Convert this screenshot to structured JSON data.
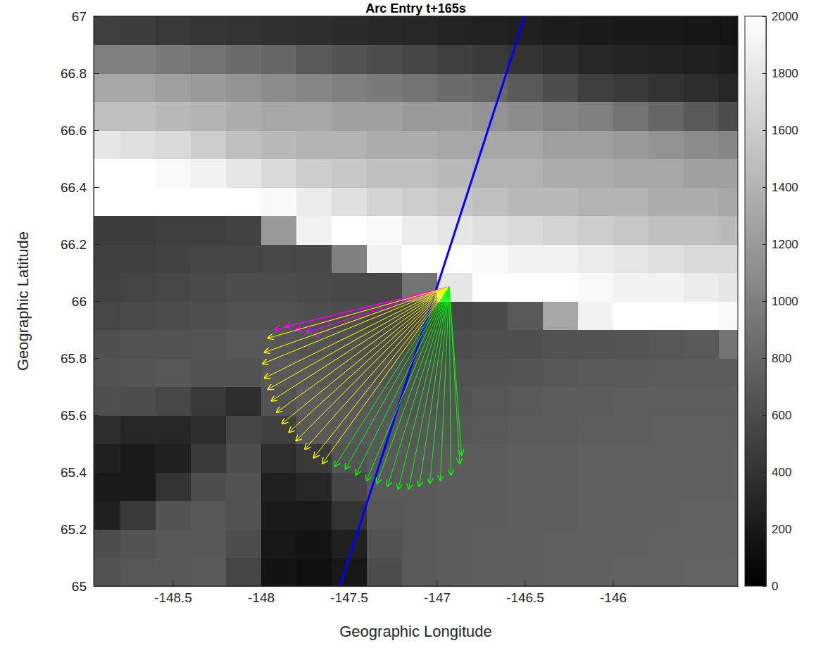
{
  "chart_data": {
    "type": "heatmap",
    "title": "Arc Entry t+165s",
    "x_label": "Geographic Longitude",
    "y_label": "Geographic Latitude",
    "xlim": [
      -148.95,
      -145.29
    ],
    "ylim": [
      65,
      67
    ],
    "xticks": [
      -148.5,
      -148,
      -147.5,
      -147,
      -146.5,
      -146
    ],
    "yticks": [
      65,
      65.2,
      65.4,
      65.6,
      65.8,
      66,
      66.2,
      66.4,
      66.6,
      66.8,
      67
    ],
    "grid": false,
    "heatmap": {
      "x": [
        -148.9,
        -148.7,
        -148.5,
        -148.3,
        -148.1,
        -147.9,
        -147.7,
        -147.5,
        -147.3,
        -147.1,
        -146.9,
        -146.7,
        -146.5,
        -146.3,
        -146.1,
        -145.9,
        -145.7,
        -145.5,
        -145.3
      ],
      "y": [
        65.05,
        65.15,
        65.25,
        65.35,
        65.45,
        65.55,
        65.65,
        65.75,
        65.85,
        65.95,
        66.05,
        66.15,
        66.25,
        66.35,
        66.45,
        66.55,
        66.65,
        66.75,
        66.85,
        66.95
      ],
      "values": [
        [
          650,
          680,
          690,
          700,
          550,
          150,
          120,
          180,
          600,
          700,
          720,
          730,
          740,
          750,
          760,
          770,
          770,
          780,
          780
        ],
        [
          600,
          650,
          680,
          690,
          600,
          180,
          150,
          250,
          650,
          700,
          720,
          730,
          740,
          750,
          760,
          760,
          770,
          770,
          770
        ],
        [
          250,
          450,
          650,
          680,
          650,
          200,
          200,
          400,
          680,
          700,
          720,
          720,
          740,
          740,
          750,
          760,
          760,
          770,
          770
        ],
        [
          200,
          200,
          400,
          600,
          650,
          250,
          300,
          550,
          700,
          700,
          720,
          720,
          740,
          740,
          750,
          750,
          760,
          760,
          760
        ],
        [
          250,
          200,
          250,
          450,
          600,
          350,
          450,
          650,
          700,
          700,
          720,
          720,
          740,
          740,
          750,
          750,
          760,
          760,
          760
        ],
        [
          350,
          300,
          300,
          350,
          550,
          500,
          700,
          700,
          700,
          680,
          680,
          700,
          720,
          720,
          740,
          740,
          750,
          750,
          750
        ],
        [
          620,
          600,
          560,
          450,
          350,
          650,
          720,
          700,
          680,
          660,
          660,
          680,
          700,
          720,
          720,
          730,
          740,
          740,
          740
        ],
        [
          640,
          660,
          680,
          650,
          640,
          700,
          700,
          680,
          660,
          640,
          640,
          650,
          660,
          680,
          700,
          700,
          720,
          720,
          720
        ],
        [
          620,
          640,
          650,
          660,
          680,
          680,
          660,
          640,
          620,
          600,
          600,
          620,
          620,
          640,
          650,
          660,
          680,
          700,
          900
        ],
        [
          560,
          580,
          600,
          620,
          640,
          640,
          620,
          600,
          580,
          560,
          560,
          580,
          700,
          1300,
          1900,
          2000,
          2000,
          2000,
          1950
        ],
        [
          520,
          540,
          560,
          580,
          600,
          600,
          580,
          560,
          560,
          900,
          1800,
          2000,
          2000,
          2000,
          1950,
          1900,
          1900,
          1850,
          1800
        ],
        [
          500,
          500,
          520,
          540,
          550,
          560,
          570,
          1000,
          1900,
          2000,
          2000,
          1950,
          1900,
          1900,
          1850,
          1800,
          1750,
          1700,
          1700
        ],
        [
          480,
          480,
          500,
          500,
          520,
          1200,
          1900,
          2000,
          1950,
          1850,
          1800,
          1750,
          1700,
          1650,
          1600,
          1550,
          1500,
          1500,
          1450
        ],
        [
          2000,
          2000,
          2000,
          2000,
          2000,
          1950,
          1850,
          1750,
          1650,
          1600,
          1550,
          1500,
          1450,
          1450,
          1400,
          1400,
          1350,
          1350,
          1300
        ],
        [
          2000,
          2000,
          1950,
          1900,
          1800,
          1700,
          1600,
          1550,
          1500,
          1500,
          1450,
          1400,
          1400,
          1350,
          1350,
          1300,
          1300,
          1250,
          1250
        ],
        [
          1800,
          1750,
          1700,
          1600,
          1500,
          1450,
          1400,
          1400,
          1350,
          1350,
          1300,
          1300,
          1300,
          1250,
          1250,
          1200,
          1150,
          1100,
          1050
        ],
        [
          1500,
          1500,
          1450,
          1400,
          1350,
          1300,
          1300,
          1250,
          1250,
          1200,
          1200,
          1150,
          1100,
          1050,
          1000,
          900,
          800,
          700,
          600
        ],
        [
          1300,
          1300,
          1250,
          1200,
          1150,
          1100,
          1050,
          1000,
          950,
          900,
          850,
          800,
          700,
          600,
          500,
          450,
          400,
          350,
          300
        ],
        [
          1000,
          1000,
          950,
          900,
          850,
          800,
          700,
          650,
          600,
          550,
          500,
          450,
          400,
          350,
          300,
          280,
          260,
          240,
          220
        ],
        [
          500,
          480,
          450,
          420,
          400,
          380,
          360,
          340,
          320,
          300,
          280,
          260,
          240,
          220,
          200,
          190,
          180,
          170,
          160
        ]
      ],
      "zlim": [
        0,
        2000
      ],
      "zticks": [
        0,
        200,
        400,
        600,
        800,
        1000,
        1200,
        1400,
        1600,
        1800,
        2000
      ]
    },
    "series": [
      {
        "type": "line",
        "color": "#0000ff",
        "x": [
          -147.55,
          -146.5
        ],
        "y": [
          65,
          67
        ]
      },
      {
        "type": "arrow",
        "color": "#ff00ff",
        "x0": -146.93,
        "y0": 66.05,
        "x": [
          -147.92,
          -147.86,
          -147.8,
          -147.74,
          -147.7
        ],
        "y": [
          65.9,
          65.91,
          65.9,
          65.89,
          65.88
        ]
      },
      {
        "type": "arrow",
        "color": "#ffff00",
        "x0": -146.93,
        "y0": 66.05,
        "x": [
          -147.96,
          -147.98,
          -147.99,
          -147.98,
          -147.96,
          -147.94,
          -147.91,
          -147.88,
          -147.84,
          -147.8,
          -147.75,
          -147.7,
          -147.65
        ],
        "y": [
          65.87,
          65.82,
          65.78,
          65.73,
          65.69,
          65.65,
          65.61,
          65.57,
          65.54,
          65.51,
          65.48,
          65.45,
          65.43
        ]
      },
      {
        "type": "arrow",
        "color": "#00ff00",
        "x0": -146.93,
        "y0": 66.05,
        "x": [
          -147.58,
          -147.52,
          -147.46,
          -147.4,
          -147.34,
          -147.28,
          -147.22,
          -147.16,
          -147.1,
          -147.04,
          -146.98,
          -146.92,
          -146.87,
          -146.86
        ],
        "y": [
          65.42,
          65.41,
          65.39,
          65.37,
          65.36,
          65.35,
          65.34,
          65.34,
          65.35,
          65.36,
          65.37,
          65.39,
          65.43,
          65.46
        ]
      }
    ]
  }
}
